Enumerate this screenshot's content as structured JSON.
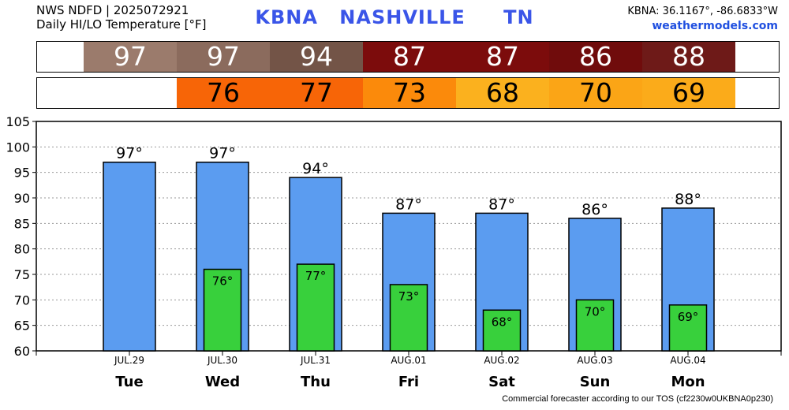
{
  "header": {
    "source": "NWS NDFD | 2025072921",
    "product": "Daily HI/LO Temperature [°F]",
    "station": "KBNA",
    "city": "NASHVILLE",
    "state": "TN",
    "coords": "KBNA: 36.1167°, -86.6833°W",
    "site": "weathermodels.com"
  },
  "hi_strip": [
    {
      "text": "97",
      "color": "#9b7b6c"
    },
    {
      "text": "97",
      "color": "#8b6b5d"
    },
    {
      "text": "94",
      "color": "#735447"
    },
    {
      "text": "87",
      "color": "#7c0c0c"
    },
    {
      "text": "87",
      "color": "#7c0c0c"
    },
    {
      "text": "86",
      "color": "#700c0c"
    },
    {
      "text": "88",
      "color": "#6e1a18"
    }
  ],
  "lo_strip": [
    {
      "text": "",
      "color": "#ffffff"
    },
    {
      "text": "76",
      "color": "#f76507"
    },
    {
      "text": "77",
      "color": "#f76507"
    },
    {
      "text": "73",
      "color": "#fb8a0b"
    },
    {
      "text": "68",
      "color": "#fbb11e"
    },
    {
      "text": "70",
      "color": "#fba516"
    },
    {
      "text": "69",
      "color": "#fbab1a"
    }
  ],
  "chart_data": {
    "type": "bar",
    "categories": [
      "JUL.29",
      "JUL.30",
      "JUL.31",
      "AUG.01",
      "AUG.02",
      "AUG.03",
      "AUG.04"
    ],
    "weekdays": [
      "Tue",
      "Wed",
      "Thu",
      "Fri",
      "Sat",
      "Sun",
      "Mon"
    ],
    "series": [
      {
        "values": [
          97,
          97,
          94,
          87,
          87,
          86,
          88
        ],
        "labels": [
          "97°",
          "97°",
          "94°",
          "87°",
          "87°",
          "86°",
          "88°"
        ],
        "color": "#5b9cf0"
      },
      {
        "values": [
          null,
          76,
          77,
          73,
          68,
          70,
          69
        ],
        "labels": [
          "",
          "76°",
          "77°",
          "73°",
          "68°",
          "70°",
          "69°"
        ],
        "color": "#38d03c"
      }
    ],
    "ylim": [
      60,
      105
    ],
    "yticks": [
      60,
      65,
      70,
      75,
      80,
      85,
      90,
      95,
      100,
      105
    ],
    "grid": true
  },
  "footer": "Commercial forecaster according to our TOS (cf2230w0UKBNA0p230)"
}
